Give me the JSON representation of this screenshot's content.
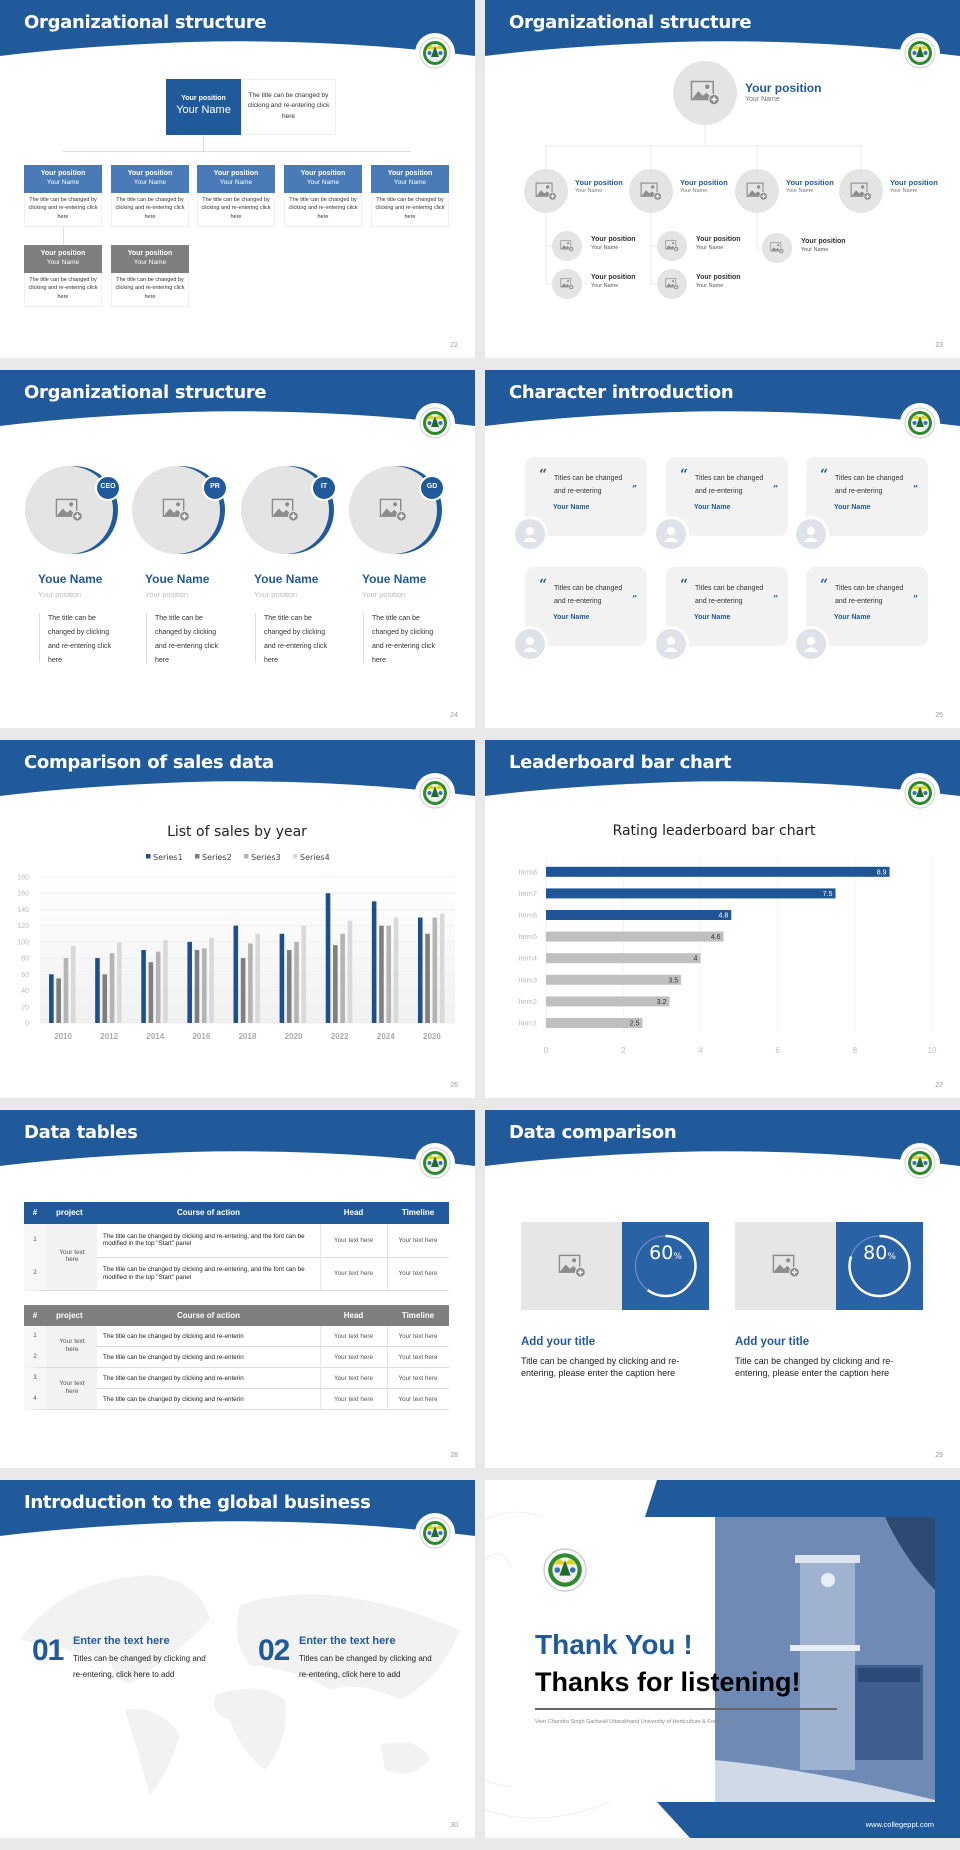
{
  "colors": {
    "primary": "#215a9b",
    "gray_box": "#7f7f7f",
    "light_gray": "#e6e6e6",
    "bar_gray": "#bfbfbf"
  },
  "s22": {
    "title": "Organizational structure",
    "page": "22",
    "top": {
      "position": "Your position",
      "name": "Your Name",
      "desc": "The title can be changed by clicking and re-entering click here"
    },
    "row1": [
      {
        "position": "Your position",
        "name": "Your Name",
        "desc": "The title can be changed by clicking and re-entering click here"
      },
      {
        "position": "Your position",
        "name": "Your Name",
        "desc": "The title can be changed by clicking and re-entering click here"
      },
      {
        "position": "Your position",
        "name": "Your Name",
        "desc": "The title can be changed by clicking and re-entering click here"
      },
      {
        "position": "Your position",
        "name": "Your Name",
        "desc": "The title can be changed by clicking and re-entering click here"
      },
      {
        "position": "Your position",
        "name": "Your Name",
        "desc": "The title can be changed by clicking and re-entering click here"
      }
    ],
    "row2": [
      {
        "position": "Your position",
        "name": "Your Name",
        "desc": "The title can be changed by clicking and re-entering click here"
      },
      {
        "position": "Your position",
        "name": "Your Name",
        "desc": "The title can be changed by clicking and re-entering click here"
      }
    ]
  },
  "s23": {
    "title": "Organizational structure",
    "page": "23",
    "top": {
      "position": "Your position",
      "name": "Your Name"
    },
    "level2": [
      {
        "position": "Your position",
        "name": "Your Name"
      },
      {
        "position": "Your position",
        "name": "Your Name"
      },
      {
        "position": "Your position",
        "name": "Your Name"
      },
      {
        "position": "Your position",
        "name": "Your Name"
      }
    ],
    "level3": [
      {
        "position": "Your position",
        "name": "Your Name"
      },
      {
        "position": "Your position",
        "name": "Your Name"
      },
      {
        "position": "Your position",
        "name": "Your Name"
      },
      {
        "position": "Your position",
        "name": "Your Name"
      },
      {
        "position": "Your position",
        "name": "Your Name"
      }
    ]
  },
  "s24": {
    "title": "Organizational structure",
    "page": "24",
    "members": [
      {
        "badge": "CEO",
        "name": "Youe Name",
        "position": "Your position",
        "desc": "The title can be changed by clicking and re-entering click here"
      },
      {
        "badge": "PR",
        "name": "Youe Name",
        "position": "Your position",
        "desc": "The title can be changed by clicking and re-entering click here"
      },
      {
        "badge": "IT",
        "name": "Youe Name",
        "position": "Your position",
        "desc": "The title can be changed by clicking and re-entering click here"
      },
      {
        "badge": "GD",
        "name": "Youe Name",
        "position": "Your position",
        "desc": "The title can be changed by clicking and re-entering click here"
      }
    ]
  },
  "s25": {
    "title": "Character introduction",
    "page": "25",
    "cards": [
      {
        "quote": "Titles can be changed and re-entering",
        "name": "Your Name"
      },
      {
        "quote": "Titles can be changed and re-entering",
        "name": "Your Name"
      },
      {
        "quote": "Titles can be changed and re-entering",
        "name": "Your Name"
      },
      {
        "quote": "Titles can be changed and re-entering",
        "name": "Your Name"
      },
      {
        "quote": "Titles can be changed and re-entering",
        "name": "Your Name"
      },
      {
        "quote": "Titles can be changed and re-entering",
        "name": "Your Name"
      }
    ]
  },
  "s26": {
    "title": "Comparison of sales data",
    "page": "26"
  },
  "s27": {
    "title": "Leaderboard bar chart",
    "page": "27"
  },
  "s28": {
    "title": "Data tables",
    "page": "28",
    "tables": [
      {
        "header": [
          "#",
          "project",
          "Course of action",
          "Head",
          "Timeline"
        ],
        "groups": [
          {
            "project": "Your text here",
            "rows": [
              {
                "num": "1",
                "course": "The title can be changed by clicking and re-entering, and the font can be modified in the top \"Start\" panel",
                "head": "Your text here",
                "timeline": "Your text here"
              },
              {
                "num": "2",
                "course": "The title can be changed by clicking and re-entering, and the font can be modified in the top \"Start\" panel",
                "head": "Your text here",
                "timeline": "Your text here"
              }
            ]
          }
        ]
      },
      {
        "header": [
          "#",
          "project",
          "Course of action",
          "Head",
          "Timeline"
        ],
        "groups": [
          {
            "project": "Your text here",
            "rows": [
              {
                "num": "1",
                "course": "The title can be changed by clicking and re-enterin",
                "head": "Your text here",
                "timeline": "Your text here"
              },
              {
                "num": "2",
                "course": "The title can be changed by clicking and re-enterin",
                "head": "Your text here",
                "timeline": "Your text here"
              }
            ]
          },
          {
            "project": "Your text here",
            "rows": [
              {
                "num": "3",
                "course": "The title can be changed by clicking and re-enterin",
                "head": "Your text here",
                "timeline": "Your text here"
              },
              {
                "num": "4",
                "course": "The title can be changed by clicking and re-enterin",
                "head": "Your text here",
                "timeline": "Your text here"
              }
            ]
          }
        ]
      }
    ]
  },
  "s29": {
    "title": "Data comparison",
    "page": "29",
    "items": [
      {
        "percent": 60,
        "value": "60",
        "unit": "%",
        "title": "Add your title",
        "text": "Title can be changed by clicking and re-entering, please enter the caption here"
      },
      {
        "percent": 80,
        "value": "80",
        "unit": "%",
        "title": "Add your title",
        "text": "Title can be changed by clicking and re-entering, please enter the caption here"
      }
    ]
  },
  "s30": {
    "title": "Introduction to the global business",
    "page": "30",
    "items": [
      {
        "num": "01",
        "title": "Enter the text here",
        "text": "Titles can be changed by clicking and re-entering, click here to add"
      },
      {
        "num": "02",
        "title": "Enter the text here",
        "text": "Titles can be changed by clicking and re-entering, click here to add"
      }
    ]
  },
  "s31": {
    "thank": "Thank You !",
    "thanks": "Thanks for listening!",
    "university": "Veer Chandra Singh Garhwali Uttarakhand University of Horticulture & Forestry",
    "url": "www.collegeppt.com"
  },
  "chart_data": [
    {
      "type": "bar",
      "title": "List of sales by year",
      "categories": [
        "2010",
        "2012",
        "2014",
        "2016",
        "2018",
        "2020",
        "2022",
        "2024",
        "2026"
      ],
      "series": [
        {
          "name": "Series1",
          "color": "#1f4e8c",
          "values": [
            60,
            80,
            90,
            100,
            120,
            110,
            160,
            150,
            130
          ]
        },
        {
          "name": "Series2",
          "color": "#7f7f7f",
          "values": [
            55,
            60,
            75,
            90,
            80,
            90,
            96,
            120,
            110
          ]
        },
        {
          "name": "Series3",
          "color": "#b4b4b4",
          "values": [
            80,
            86,
            88,
            92,
            98,
            100,
            110,
            120,
            130
          ]
        },
        {
          "name": "Series4",
          "color": "#d9d9d9",
          "values": [
            95,
            99,
            102,
            105,
            110,
            120,
            126,
            130,
            135
          ]
        }
      ],
      "ylim": [
        0,
        180
      ],
      "yticks": [
        0,
        20,
        40,
        60,
        80,
        100,
        120,
        140,
        160,
        180
      ],
      "legend": "top",
      "grid": true
    },
    {
      "type": "bar",
      "orientation": "horizontal",
      "title": "Rating leaderboard bar chart",
      "categories": [
        "Item1",
        "Item2",
        "Item3",
        "Item4",
        "Item5",
        "Item6",
        "Item7",
        "Item8"
      ],
      "values": [
        2.5,
        3.2,
        3.5,
        4,
        4.6,
        4.8,
        7.5,
        8.9
      ],
      "labels": [
        "2.5",
        "3.2",
        "3.5",
        "4",
        "4.6",
        "4.8",
        "7.5",
        "8.9"
      ],
      "highlight_color": "#1f5597",
      "base_color": "#bfbfbf",
      "highlight_top": 3,
      "xlim": [
        0,
        10
      ],
      "xticks": [
        "0",
        "2",
        "4",
        "6",
        "8",
        "10"
      ],
      "grid": true
    }
  ]
}
